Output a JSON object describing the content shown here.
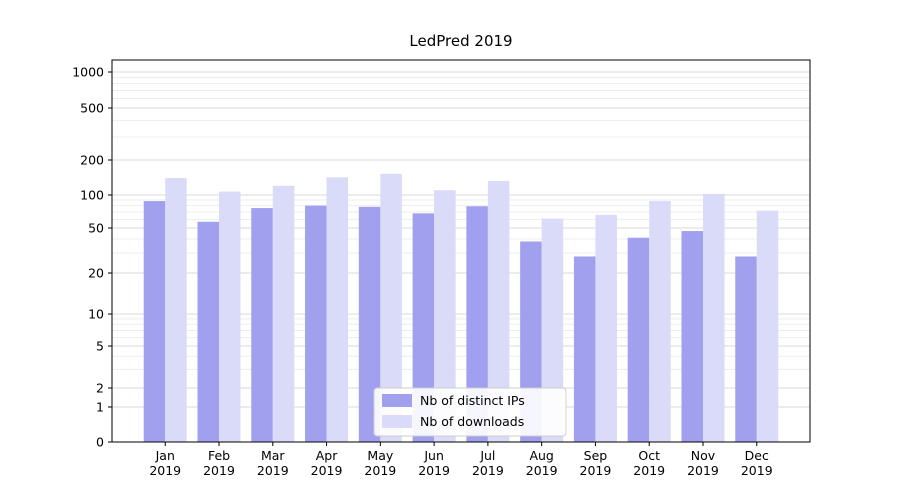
{
  "figure": {
    "title": "LedPred 2019"
  },
  "chart_data": {
    "type": "bar",
    "title": "LedPred 2019",
    "x_tick_top": [
      "Jan",
      "Feb",
      "Mar",
      "Apr",
      "May",
      "Jun",
      "Jul",
      "Aug",
      "Sep",
      "Oct",
      "Nov",
      "Dec"
    ],
    "x_tick_bottom": "2019",
    "categories": [
      "Jan 2019",
      "Feb 2019",
      "Mar 2019",
      "Apr 2019",
      "May 2019",
      "Jun 2019",
      "Jul 2019",
      "Aug 2019",
      "Sep 2019",
      "Oct 2019",
      "Nov 2019",
      "Dec 2019"
    ],
    "series": [
      {
        "name": "Nb of distinct IPs",
        "color": "#a0a0ef",
        "values": [
          88,
          57,
          76,
          80,
          78,
          68,
          79,
          38,
          28,
          41,
          47,
          28
        ]
      },
      {
        "name": "Nb of downloads",
        "color": "#dadaf9",
        "values": [
          140,
          107,
          120,
          142,
          152,
          110,
          132,
          61,
          66,
          88,
          102,
          72
        ]
      }
    ],
    "yscale": "symlog",
    "yticks": [
      0,
      1,
      2,
      5,
      10,
      20,
      50,
      100,
      200,
      500,
      1000
    ],
    "ylim": [
      0,
      1000
    ],
    "xlabel": "",
    "ylabel": "",
    "grid": true,
    "legend": {
      "entries": [
        "Nb of distinct IPs",
        "Nb of downloads"
      ],
      "position": "lower center"
    }
  }
}
